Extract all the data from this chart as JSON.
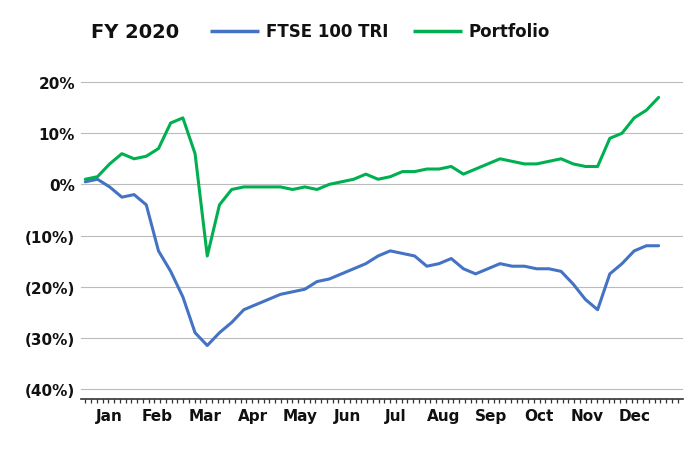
{
  "title": "FY 2020",
  "legend_ftse": "FTSE 100 TRI",
  "legend_portfolio": "Portfolio",
  "ftse_color": "#4472C4",
  "portfolio_color": "#00B050",
  "background_color": "#FFFFFF",
  "grid_color": "#BBBBBB",
  "ylim": [
    -0.42,
    0.25
  ],
  "yticks": [
    -0.4,
    -0.3,
    -0.2,
    -0.1,
    0.0,
    0.1,
    0.2
  ],
  "ytick_labels": [
    "(40%)",
    "(30%)",
    "(20%)",
    "(10%)",
    "0%",
    "10%",
    "20%"
  ],
  "month_labels": [
    "Jan",
    "Feb",
    "Mar",
    "Apr",
    "May",
    "Jun",
    "Jul",
    "Aug",
    "Sep",
    "Oct",
    "Nov",
    "Dec"
  ],
  "ftse_y": [
    0.005,
    0.01,
    -0.005,
    -0.025,
    -0.02,
    -0.04,
    -0.13,
    -0.17,
    -0.22,
    -0.29,
    -0.315,
    -0.29,
    -0.27,
    -0.245,
    -0.235,
    -0.225,
    -0.215,
    -0.21,
    -0.205,
    -0.19,
    -0.185,
    -0.175,
    -0.165,
    -0.155,
    -0.14,
    -0.13,
    -0.135,
    -0.14,
    -0.16,
    -0.155,
    -0.145,
    -0.165,
    -0.175,
    -0.165,
    -0.155,
    -0.16,
    -0.16,
    -0.165,
    -0.165,
    -0.17,
    -0.195,
    -0.225,
    -0.245,
    -0.175,
    -0.155,
    -0.13,
    -0.12,
    -0.12
  ],
  "portfolio_y": [
    0.01,
    0.015,
    0.04,
    0.06,
    0.05,
    0.055,
    0.07,
    0.12,
    0.13,
    0.06,
    -0.14,
    -0.04,
    -0.01,
    -0.005,
    -0.005,
    -0.005,
    -0.005,
    -0.01,
    -0.005,
    -0.01,
    0.0,
    0.005,
    0.01,
    0.02,
    0.01,
    0.015,
    0.025,
    0.025,
    0.03,
    0.03,
    0.035,
    0.02,
    0.03,
    0.04,
    0.05,
    0.045,
    0.04,
    0.04,
    0.045,
    0.05,
    0.04,
    0.035,
    0.035,
    0.09,
    0.1,
    0.13,
    0.145,
    0.17
  ]
}
